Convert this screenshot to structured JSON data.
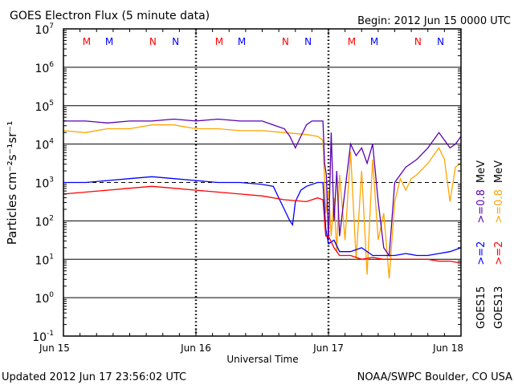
{
  "chart_data": {
    "type": "line",
    "title": "GOES Electron Flux (5 minute data)",
    "begin": "Begin: 2012 Jun 15 0000 UTC",
    "xlabel": "Universal Time",
    "ylabel": "Particles cm⁻²s⁻¹sr⁻¹",
    "x_unit": "hours since 2012 Jun 15 0000 UTC",
    "xlim": [
      0,
      72
    ],
    "ylim_log10": [
      -1,
      7
    ],
    "x_ticks": [
      {
        "h": 0,
        "label": "Jun 15"
      },
      {
        "h": 24,
        "label": "Jun 16"
      },
      {
        "h": 48,
        "label": "Jun 17"
      },
      {
        "h": 72,
        "label": "Jun 18"
      }
    ],
    "y_ticks": [
      {
        "base": "10",
        "exp": "7"
      },
      {
        "base": "10",
        "exp": "6"
      },
      {
        "base": "10",
        "exp": "5"
      },
      {
        "base": "10",
        "exp": "4"
      },
      {
        "base": "10",
        "exp": "3"
      },
      {
        "base": "10",
        "exp": "2"
      },
      {
        "base": "10",
        "exp": "1"
      },
      {
        "base": "10",
        "exp": "0"
      },
      {
        "base": "10",
        "exp": "-1"
      }
    ],
    "threshold_log10": 3,
    "grid": true,
    "markers": [
      {
        "label": "M",
        "h": 4.2,
        "color": "#ff0000"
      },
      {
        "label": "M",
        "h": 8.3,
        "color": "#0000ff"
      },
      {
        "label": "N",
        "h": 16.2,
        "color": "#ff0000"
      },
      {
        "label": "N",
        "h": 20.3,
        "color": "#0000ff"
      },
      {
        "label": "M",
        "h": 28.2,
        "color": "#ff0000"
      },
      {
        "label": "M",
        "h": 32.3,
        "color": "#0000ff"
      },
      {
        "label": "N",
        "h": 40.2,
        "color": "#ff0000"
      },
      {
        "label": "N",
        "h": 44.3,
        "color": "#0000ff"
      },
      {
        "label": "M",
        "h": 52.2,
        "color": "#ff0000"
      },
      {
        "label": "M",
        "h": 56.3,
        "color": "#0000ff"
      },
      {
        "label": "N",
        "h": 64.2,
        "color": "#ff0000"
      },
      {
        "label": "N",
        "h": 68.3,
        "color": "#0000ff"
      }
    ],
    "legend_placement": "right-vertical",
    "legend": [
      {
        "group": "GOES15",
        "entries": [
          {
            "label": ">=2",
            "color": "#0000ff"
          },
          {
            "label": ">=0.8",
            "color": "#5a00b4"
          },
          {
            "label": "MeV",
            "color": "#000000"
          }
        ]
      },
      {
        "group": "GOES13",
        "entries": [
          {
            "label": ">=2",
            "color": "#ff0000"
          },
          {
            "label": ">=0.8",
            "color": "#ffa500"
          },
          {
            "label": "MeV",
            "color": "#000000"
          }
        ]
      }
    ],
    "series": [
      {
        "name": "GOES13 >=0.8 MeV",
        "color": "#ffa500",
        "x": [
          0,
          4,
          8,
          12,
          16,
          20,
          24,
          28,
          32,
          36,
          40,
          44,
          46,
          47,
          47.5,
          48,
          48.5,
          49,
          49.5,
          50,
          51,
          52,
          53,
          54,
          55,
          56,
          57,
          58,
          59,
          60,
          61,
          62,
          63,
          64,
          66,
          68,
          69,
          70,
          71,
          72
        ],
        "log10": [
          4.35,
          4.3,
          4.4,
          4.4,
          4.5,
          4.5,
          4.4,
          4.4,
          4.35,
          4.35,
          4.3,
          4.25,
          4.2,
          4.1,
          2.2,
          2.8,
          1.6,
          2.6,
          1.2,
          3.2,
          1.5,
          3.8,
          1.0,
          3.3,
          0.6,
          3.6,
          1.5,
          2.2,
          0.5,
          2.5,
          3.1,
          2.8,
          3.1,
          3.2,
          3.5,
          3.9,
          3.6,
          2.5,
          3.4,
          3.5
        ]
      },
      {
        "name": "GOES15 >=0.8 MeV",
        "color": "#5a00b4",
        "x": [
          0,
          4,
          8,
          12,
          16,
          20,
          24,
          28,
          32,
          36,
          38,
          40,
          41,
          42,
          43,
          44,
          45,
          46,
          47,
          47.3,
          47.6,
          48,
          48.5,
          49,
          49.5,
          50,
          51,
          52,
          53,
          54,
          55,
          56,
          57,
          58,
          59,
          60,
          61,
          62,
          63,
          64,
          66,
          68,
          69,
          70,
          71,
          72
        ],
        "log10": [
          4.6,
          4.6,
          4.55,
          4.6,
          4.6,
          4.65,
          4.6,
          4.65,
          4.6,
          4.6,
          4.5,
          4.4,
          4.2,
          3.9,
          4.2,
          4.5,
          4.6,
          4.6,
          4.6,
          3.5,
          3.2,
          1.5,
          4.3,
          2.0,
          3.3,
          1.6,
          2.8,
          4.0,
          3.7,
          3.9,
          3.5,
          4.0,
          2.5,
          1.3,
          1.1,
          3.0,
          3.2,
          3.4,
          3.5,
          3.6,
          3.9,
          4.3,
          4.1,
          3.9,
          4.0,
          4.2
        ]
      },
      {
        "name": "GOES15 >=2 MeV",
        "color": "#0000ff",
        "x": [
          0,
          4,
          8,
          12,
          16,
          20,
          24,
          28,
          32,
          36,
          38,
          39,
          40,
          41,
          41.5,
          42,
          43,
          44,
          46,
          47,
          47.5,
          48,
          49,
          50,
          52,
          54,
          56,
          58,
          60,
          62,
          64,
          66,
          68,
          70,
          72
        ],
        "log10": [
          3.0,
          3.0,
          3.05,
          3.1,
          3.15,
          3.1,
          3.05,
          3.0,
          3.0,
          2.95,
          2.9,
          2.6,
          2.3,
          2.0,
          1.9,
          2.5,
          2.8,
          2.9,
          3.0,
          3.0,
          1.8,
          1.4,
          1.5,
          1.2,
          1.2,
          1.3,
          1.1,
          1.1,
          1.1,
          1.15,
          1.1,
          1.1,
          1.15,
          1.2,
          1.3
        ]
      },
      {
        "name": "GOES13 >=2 MeV",
        "color": "#ff0000",
        "x": [
          0,
          4,
          8,
          12,
          16,
          20,
          24,
          28,
          32,
          36,
          40,
          44,
          46,
          47,
          47.5,
          48,
          49,
          50,
          52,
          54,
          56,
          58,
          60,
          62,
          64,
          66,
          68,
          70,
          72
        ],
        "log10": [
          2.7,
          2.75,
          2.8,
          2.85,
          2.9,
          2.85,
          2.8,
          2.75,
          2.7,
          2.65,
          2.55,
          2.5,
          2.6,
          2.55,
          1.6,
          1.6,
          1.3,
          1.1,
          1.1,
          1.0,
          1.05,
          1.0,
          1.0,
          1.0,
          1.0,
          1.0,
          0.95,
          0.95,
          0.9
        ]
      }
    ]
  },
  "footer": {
    "updated": "Updated 2012 Jun 17 23:56:02 UTC",
    "credit": "NOAA/SWPC Boulder, CO USA"
  }
}
